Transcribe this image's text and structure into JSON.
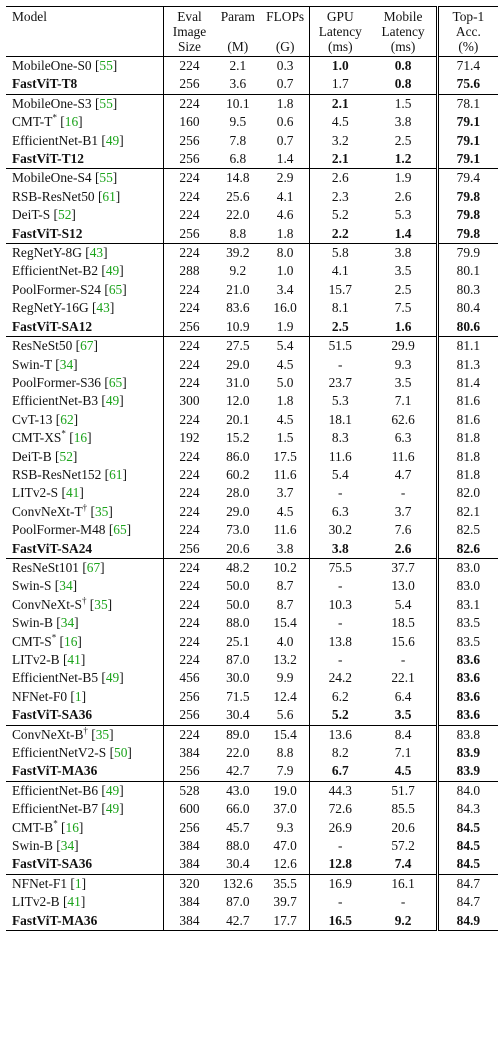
{
  "headers": {
    "model": "Model",
    "eval": [
      "Eval",
      "Image",
      "Size"
    ],
    "param": [
      "Param",
      "",
      "(M)"
    ],
    "flops": [
      "FLOPs",
      "",
      "(G)"
    ],
    "gpu": [
      "GPU",
      "Latency",
      "(ms)"
    ],
    "mobile": [
      "Mobile",
      "Latency",
      "(ms)"
    ],
    "top1": [
      "Top-1",
      "Acc.",
      "(%)"
    ]
  },
  "groups": [
    [
      {
        "name": "MobileOne-S0",
        "sup": "",
        "ref": "55",
        "bold_name": false,
        "size": "224",
        "param": "2.1",
        "flops": "0.3",
        "gpu": "1.0",
        "gpu_b": true,
        "mobile": "0.8",
        "mobile_b": true,
        "top1": "71.4",
        "top1_b": false
      },
      {
        "name": "FastViT-T8",
        "sup": "",
        "ref": "",
        "bold_name": true,
        "size": "256",
        "param": "3.6",
        "flops": "0.7",
        "gpu": "1.7",
        "gpu_b": false,
        "mobile": "0.8",
        "mobile_b": true,
        "top1": "75.6",
        "top1_b": true
      }
    ],
    [
      {
        "name": "MobileOne-S3",
        "sup": "",
        "ref": "55",
        "bold_name": false,
        "size": "224",
        "param": "10.1",
        "flops": "1.8",
        "gpu": "2.1",
        "gpu_b": true,
        "mobile": "1.5",
        "mobile_b": false,
        "top1": "78.1",
        "top1_b": false
      },
      {
        "name": "CMT-T",
        "sup": "*",
        "ref": "16",
        "bold_name": false,
        "size": "160",
        "param": "9.5",
        "flops": "0.6",
        "gpu": "4.5",
        "gpu_b": false,
        "mobile": "3.8",
        "mobile_b": false,
        "top1": "79.1",
        "top1_b": true
      },
      {
        "name": "EfficientNet-B1",
        "sup": "",
        "ref": "49",
        "bold_name": false,
        "size": "256",
        "param": "7.8",
        "flops": "0.7",
        "gpu": "3.2",
        "gpu_b": false,
        "mobile": "2.5",
        "mobile_b": false,
        "top1": "79.1",
        "top1_b": true
      },
      {
        "name": "FastViT-T12",
        "sup": "",
        "ref": "",
        "bold_name": true,
        "size": "256",
        "param": "6.8",
        "flops": "1.4",
        "gpu": "2.1",
        "gpu_b": true,
        "mobile": "1.2",
        "mobile_b": true,
        "top1": "79.1",
        "top1_b": true
      }
    ],
    [
      {
        "name": "MobileOne-S4",
        "sup": "",
        "ref": "55",
        "bold_name": false,
        "size": "224",
        "param": "14.8",
        "flops": "2.9",
        "gpu": "2.6",
        "gpu_b": false,
        "mobile": "1.9",
        "mobile_b": false,
        "top1": "79.4",
        "top1_b": false
      },
      {
        "name": "RSB-ResNet50",
        "sup": "",
        "ref": "61",
        "bold_name": false,
        "size": "224",
        "param": "25.6",
        "flops": "4.1",
        "gpu": "2.3",
        "gpu_b": false,
        "mobile": "2.6",
        "mobile_b": false,
        "top1": "79.8",
        "top1_b": true
      },
      {
        "name": "DeiT-S",
        "sup": "",
        "ref": "52",
        "bold_name": false,
        "size": "224",
        "param": "22.0",
        "flops": "4.6",
        "gpu": "5.2",
        "gpu_b": false,
        "mobile": "5.3",
        "mobile_b": false,
        "top1": "79.8",
        "top1_b": true
      },
      {
        "name": "FastViT-S12",
        "sup": "",
        "ref": "",
        "bold_name": true,
        "size": "256",
        "param": "8.8",
        "flops": "1.8",
        "gpu": "2.2",
        "gpu_b": true,
        "mobile": "1.4",
        "mobile_b": true,
        "top1": "79.8",
        "top1_b": true
      }
    ],
    [
      {
        "name": "RegNetY-8G",
        "sup": "",
        "ref": "43",
        "bold_name": false,
        "size": "224",
        "param": "39.2",
        "flops": "8.0",
        "gpu": "5.8",
        "gpu_b": false,
        "mobile": "3.8",
        "mobile_b": false,
        "top1": "79.9",
        "top1_b": false
      },
      {
        "name": "EfficientNet-B2",
        "sup": "",
        "ref": "49",
        "bold_name": false,
        "size": "288",
        "param": "9.2",
        "flops": "1.0",
        "gpu": "4.1",
        "gpu_b": false,
        "mobile": "3.5",
        "mobile_b": false,
        "top1": "80.1",
        "top1_b": false
      },
      {
        "name": "PoolFormer-S24",
        "sup": "",
        "ref": "65",
        "bold_name": false,
        "size": "224",
        "param": "21.0",
        "flops": "3.4",
        "gpu": "15.7",
        "gpu_b": false,
        "mobile": "2.5",
        "mobile_b": false,
        "top1": "80.3",
        "top1_b": false
      },
      {
        "name": "RegNetY-16G",
        "sup": "",
        "ref": "43",
        "bold_name": false,
        "size": "224",
        "param": "83.6",
        "flops": "16.0",
        "gpu": "8.1",
        "gpu_b": false,
        "mobile": "7.5",
        "mobile_b": false,
        "top1": "80.4",
        "top1_b": false
      },
      {
        "name": "FastViT-SA12",
        "sup": "",
        "ref": "",
        "bold_name": true,
        "size": "256",
        "param": "10.9",
        "flops": "1.9",
        "gpu": "2.5",
        "gpu_b": true,
        "mobile": "1.6",
        "mobile_b": true,
        "top1": "80.6",
        "top1_b": true
      }
    ],
    [
      {
        "name": "ResNeSt50",
        "sup": "",
        "ref": "67",
        "bold_name": false,
        "size": "224",
        "param": "27.5",
        "flops": "5.4",
        "gpu": "51.5",
        "gpu_b": false,
        "mobile": "29.9",
        "mobile_b": false,
        "top1": "81.1",
        "top1_b": false
      },
      {
        "name": "Swin-T",
        "sup": "",
        "ref": "34",
        "bold_name": false,
        "size": "224",
        "param": "29.0",
        "flops": "4.5",
        "gpu": "-",
        "gpu_b": false,
        "mobile": "9.3",
        "mobile_b": false,
        "top1": "81.3",
        "top1_b": false
      },
      {
        "name": "PoolFormer-S36",
        "sup": "",
        "ref": "65",
        "bold_name": false,
        "size": "224",
        "param": "31.0",
        "flops": "5.0",
        "gpu": "23.7",
        "gpu_b": false,
        "mobile": "3.5",
        "mobile_b": false,
        "top1": "81.4",
        "top1_b": false
      },
      {
        "name": "EfficientNet-B3",
        "sup": "",
        "ref": "49",
        "bold_name": false,
        "size": "300",
        "param": "12.0",
        "flops": "1.8",
        "gpu": "5.3",
        "gpu_b": false,
        "mobile": "7.1",
        "mobile_b": false,
        "top1": "81.6",
        "top1_b": false
      },
      {
        "name": "CvT-13",
        "sup": "",
        "ref": "62",
        "bold_name": false,
        "size": "224",
        "param": "20.1",
        "flops": "4.5",
        "gpu": "18.1",
        "gpu_b": false,
        "mobile": "62.6",
        "mobile_b": false,
        "top1": "81.6",
        "top1_b": false
      },
      {
        "name": "CMT-XS",
        "sup": "*",
        "ref": "16",
        "bold_name": false,
        "size": "192",
        "param": "15.2",
        "flops": "1.5",
        "gpu": "8.3",
        "gpu_b": false,
        "mobile": "6.3",
        "mobile_b": false,
        "top1": "81.8",
        "top1_b": false
      },
      {
        "name": "DeiT-B",
        "sup": "",
        "ref": "52",
        "bold_name": false,
        "size": "224",
        "param": "86.0",
        "flops": "17.5",
        "gpu": "11.6",
        "gpu_b": false,
        "mobile": "11.6",
        "mobile_b": false,
        "top1": "81.8",
        "top1_b": false
      },
      {
        "name": "RSB-ResNet152",
        "sup": "",
        "ref": "61",
        "bold_name": false,
        "size": "224",
        "param": "60.2",
        "flops": "11.6",
        "gpu": "5.4",
        "gpu_b": false,
        "mobile": "4.7",
        "mobile_b": false,
        "top1": "81.8",
        "top1_b": false
      },
      {
        "name": "LITv2-S",
        "sup": "",
        "ref": "41",
        "bold_name": false,
        "size": "224",
        "param": "28.0",
        "flops": "3.7",
        "gpu": "-",
        "gpu_b": false,
        "mobile": "-",
        "mobile_b": false,
        "top1": "82.0",
        "top1_b": false
      },
      {
        "name": "ConvNeXt-T",
        "sup": "†",
        "ref": "35",
        "bold_name": false,
        "size": "224",
        "param": "29.0",
        "flops": "4.5",
        "gpu": "6.3",
        "gpu_b": false,
        "mobile": "3.7",
        "mobile_b": false,
        "top1": "82.1",
        "top1_b": false
      },
      {
        "name": "PoolFormer-M48",
        "sup": "",
        "ref": "65",
        "bold_name": false,
        "size": "224",
        "param": "73.0",
        "flops": "11.6",
        "gpu": "30.2",
        "gpu_b": false,
        "mobile": "7.6",
        "mobile_b": false,
        "top1": "82.5",
        "top1_b": false
      },
      {
        "name": "FastViT-SA24",
        "sup": "",
        "ref": "",
        "bold_name": true,
        "size": "256",
        "param": "20.6",
        "flops": "3.8",
        "gpu": "3.8",
        "gpu_b": true,
        "mobile": "2.6",
        "mobile_b": true,
        "top1": "82.6",
        "top1_b": true
      }
    ],
    [
      {
        "name": "ResNeSt101",
        "sup": "",
        "ref": "67",
        "bold_name": false,
        "size": "224",
        "param": "48.2",
        "flops": "10.2",
        "gpu": "75.5",
        "gpu_b": false,
        "mobile": "37.7",
        "mobile_b": false,
        "top1": "83.0",
        "top1_b": false
      },
      {
        "name": "Swin-S",
        "sup": "",
        "ref": "34",
        "bold_name": false,
        "size": "224",
        "param": "50.0",
        "flops": "8.7",
        "gpu": "-",
        "gpu_b": false,
        "mobile": "13.0",
        "mobile_b": false,
        "top1": "83.0",
        "top1_b": false
      },
      {
        "name": "ConvNeXt-S",
        "sup": "†",
        "ref": "35",
        "bold_name": false,
        "size": "224",
        "param": "50.0",
        "flops": "8.7",
        "gpu": "10.3",
        "gpu_b": false,
        "mobile": "5.4",
        "mobile_b": false,
        "top1": "83.1",
        "top1_b": false
      },
      {
        "name": "Swin-B",
        "sup": "",
        "ref": "34",
        "bold_name": false,
        "size": "224",
        "param": "88.0",
        "flops": "15.4",
        "gpu": "-",
        "gpu_b": false,
        "mobile": "18.5",
        "mobile_b": false,
        "top1": "83.5",
        "top1_b": false
      },
      {
        "name": "CMT-S",
        "sup": "*",
        "ref": "16",
        "bold_name": false,
        "size": "224",
        "param": "25.1",
        "flops": "4.0",
        "gpu": "13.8",
        "gpu_b": false,
        "mobile": "15.6",
        "mobile_b": false,
        "top1": "83.5",
        "top1_b": false
      },
      {
        "name": "LITv2-B",
        "sup": "",
        "ref": "41",
        "bold_name": false,
        "size": "224",
        "param": "87.0",
        "flops": "13.2",
        "gpu": "-",
        "gpu_b": false,
        "mobile": "-",
        "mobile_b": false,
        "top1": "83.6",
        "top1_b": true
      },
      {
        "name": "EfficientNet-B5",
        "sup": "",
        "ref": "49",
        "bold_name": false,
        "size": "456",
        "param": "30.0",
        "flops": "9.9",
        "gpu": "24.2",
        "gpu_b": false,
        "mobile": "22.1",
        "mobile_b": false,
        "top1": "83.6",
        "top1_b": true
      },
      {
        "name": "NFNet-F0",
        "sup": "",
        "ref": "1",
        "bold_name": false,
        "size": "256",
        "param": "71.5",
        "flops": "12.4",
        "gpu": "6.2",
        "gpu_b": false,
        "mobile": "6.4",
        "mobile_b": false,
        "top1": "83.6",
        "top1_b": true
      },
      {
        "name": "FastViT-SA36",
        "sup": "",
        "ref": "",
        "bold_name": true,
        "size": "256",
        "param": "30.4",
        "flops": "5.6",
        "gpu": "5.2",
        "gpu_b": true,
        "mobile": "3.5",
        "mobile_b": true,
        "top1": "83.6",
        "top1_b": true
      }
    ],
    [
      {
        "name": "ConvNeXt-B",
        "sup": "†",
        "ref": "35",
        "bold_name": false,
        "size": "224",
        "param": "89.0",
        "flops": "15.4",
        "gpu": "13.6",
        "gpu_b": false,
        "mobile": "8.4",
        "mobile_b": false,
        "top1": "83.8",
        "top1_b": false
      },
      {
        "name": "EfficientNetV2-S",
        "sup": "",
        "ref": "50",
        "bold_name": false,
        "size": "384",
        "param": "22.0",
        "flops": "8.8",
        "gpu": "8.2",
        "gpu_b": false,
        "mobile": "7.1",
        "mobile_b": false,
        "top1": "83.9",
        "top1_b": true
      },
      {
        "name": "FastViT-MA36",
        "sup": "",
        "ref": "",
        "bold_name": true,
        "size": "256",
        "param": "42.7",
        "flops": "7.9",
        "gpu": "6.7",
        "gpu_b": true,
        "mobile": "4.5",
        "mobile_b": true,
        "top1": "83.9",
        "top1_b": true
      }
    ],
    [
      {
        "name": "EfficientNet-B6",
        "sup": "",
        "ref": "49",
        "bold_name": false,
        "size": "528",
        "param": "43.0",
        "flops": "19.0",
        "gpu": "44.3",
        "gpu_b": false,
        "mobile": "51.7",
        "mobile_b": false,
        "top1": "84.0",
        "top1_b": false
      },
      {
        "name": "EfficientNet-B7",
        "sup": "",
        "ref": "49",
        "bold_name": false,
        "size": "600",
        "param": "66.0",
        "flops": "37.0",
        "gpu": "72.6",
        "gpu_b": false,
        "mobile": "85.5",
        "mobile_b": false,
        "top1": "84.3",
        "top1_b": false
      },
      {
        "name": "CMT-B",
        "sup": "*",
        "ref": "16",
        "bold_name": false,
        "size": "256",
        "param": "45.7",
        "flops": "9.3",
        "gpu": "26.9",
        "gpu_b": false,
        "mobile": "20.6",
        "mobile_b": false,
        "top1": "84.5",
        "top1_b": true
      },
      {
        "name": "Swin-B",
        "sup": "",
        "ref": "34",
        "bold_name": false,
        "size": "384",
        "param": "88.0",
        "flops": "47.0",
        "gpu": "-",
        "gpu_b": false,
        "mobile": "57.2",
        "mobile_b": false,
        "top1": "84.5",
        "top1_b": true
      },
      {
        "name": "FastViT-SA36",
        "sup": "",
        "ref": "",
        "bold_name": true,
        "size": "384",
        "param": "30.4",
        "flops": "12.6",
        "gpu": "12.8",
        "gpu_b": true,
        "mobile": "7.4",
        "mobile_b": true,
        "top1": "84.5",
        "top1_b": true
      }
    ],
    [
      {
        "name": "NFNet-F1",
        "sup": "",
        "ref": "1",
        "bold_name": false,
        "size": "320",
        "param": "132.6",
        "flops": "35.5",
        "gpu": "16.9",
        "gpu_b": false,
        "mobile": "16.1",
        "mobile_b": false,
        "top1": "84.7",
        "top1_b": false
      },
      {
        "name": "LITv2-B",
        "sup": "",
        "ref": "41",
        "bold_name": false,
        "size": "384",
        "param": "87.0",
        "flops": "39.7",
        "gpu": "-",
        "gpu_b": false,
        "mobile": "-",
        "mobile_b": false,
        "top1": "84.7",
        "top1_b": false
      },
      {
        "name": "FastViT-MA36",
        "sup": "",
        "ref": "",
        "bold_name": true,
        "size": "384",
        "param": "42.7",
        "flops": "17.7",
        "gpu": "16.5",
        "gpu_b": true,
        "mobile": "9.2",
        "mobile_b": true,
        "top1": "84.9",
        "top1_b": true
      }
    ]
  ]
}
